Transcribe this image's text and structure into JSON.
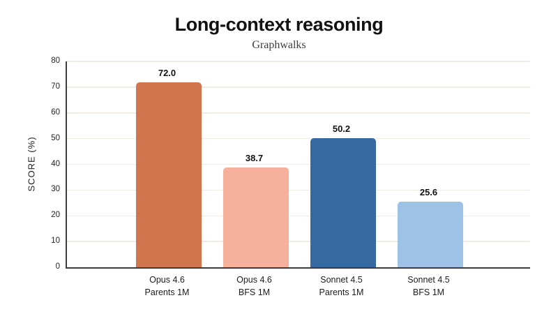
{
  "page": {
    "title": "Long-context reasoning",
    "subtitle": "Graphwalks"
  },
  "chart_data": {
    "type": "bar",
    "title": "Long-context reasoning",
    "subtitle": "Graphwalks",
    "xlabel": "",
    "ylabel": "SCORE (%)",
    "ylim": [
      0,
      80
    ],
    "yticks": [
      0,
      10,
      20,
      30,
      40,
      50,
      60,
      70,
      80
    ],
    "grid": true,
    "legend": "none",
    "categories": [
      [
        "Opus 4.6",
        "Parents 1M"
      ],
      [
        "Opus 4.6",
        "BFS 1M"
      ],
      [
        "Sonnet 4.5",
        "Parents 1M"
      ],
      [
        "Sonnet 4.5",
        "BFS 1M"
      ]
    ],
    "values": [
      72.0,
      38.7,
      50.2,
      25.6
    ],
    "value_labels": [
      "72.0",
      "38.7",
      "50.2",
      "25.6"
    ],
    "bar_colors": [
      "#d1754e",
      "#f5b19b",
      "#35699f",
      "#9dc2e6"
    ],
    "style_colors": {
      "grid": "#f0ece3",
      "axis": "#3b3b3b",
      "title_text": "#121212",
      "tick_text": "#222222"
    }
  }
}
